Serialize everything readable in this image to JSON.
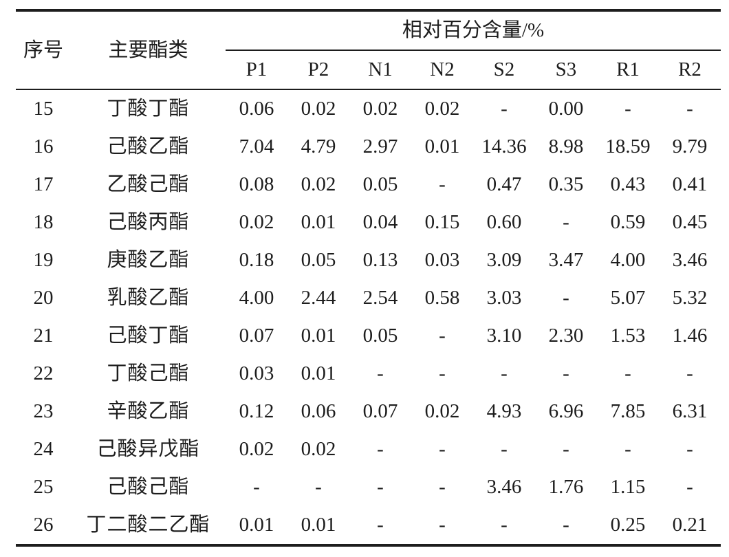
{
  "page": {
    "background": "#ffffff",
    "text_color": "#1d1d1d",
    "rule_color": "#1d1d1d"
  },
  "table": {
    "headers": {
      "serial": "序号",
      "ester": "主要酯类",
      "relative_content": "相对百分含量/%",
      "samples": [
        "P1",
        "P2",
        "N1",
        "N2",
        "S2",
        "S3",
        "R1",
        "R2"
      ]
    },
    "rows": [
      {
        "no": "15",
        "name": "丁酸丁酯",
        "values": [
          "0.06",
          "0.02",
          "0.02",
          "0.02",
          "-",
          "0.00",
          "-",
          "-"
        ]
      },
      {
        "no": "16",
        "name": "己酸乙酯",
        "values": [
          "7.04",
          "4.79",
          "2.97",
          "0.01",
          "14.36",
          "8.98",
          "18.59",
          "9.79"
        ]
      },
      {
        "no": "17",
        "name": "乙酸己酯",
        "values": [
          "0.08",
          "0.02",
          "0.05",
          "-",
          "0.47",
          "0.35",
          "0.43",
          "0.41"
        ]
      },
      {
        "no": "18",
        "name": "己酸丙酯",
        "values": [
          "0.02",
          "0.01",
          "0.04",
          "0.15",
          "0.60",
          "-",
          "0.59",
          "0.45"
        ]
      },
      {
        "no": "19",
        "name": "庚酸乙酯",
        "values": [
          "0.18",
          "0.05",
          "0.13",
          "0.03",
          "3.09",
          "3.47",
          "4.00",
          "3.46"
        ]
      },
      {
        "no": "20",
        "name": "乳酸乙酯",
        "values": [
          "4.00",
          "2.44",
          "2.54",
          "0.58",
          "3.03",
          "-",
          "5.07",
          "5.32"
        ]
      },
      {
        "no": "21",
        "name": "己酸丁酯",
        "values": [
          "0.07",
          "0.01",
          "0.05",
          "-",
          "3.10",
          "2.30",
          "1.53",
          "1.46"
        ]
      },
      {
        "no": "22",
        "name": "丁酸己酯",
        "values": [
          "0.03",
          "0.01",
          "-",
          "-",
          "-",
          "-",
          "-",
          "-"
        ]
      },
      {
        "no": "23",
        "name": "辛酸乙酯",
        "values": [
          "0.12",
          "0.06",
          "0.07",
          "0.02",
          "4.93",
          "6.96",
          "7.85",
          "6.31"
        ]
      },
      {
        "no": "24",
        "name": "己酸异戊酯",
        "values": [
          "0.02",
          "0.02",
          "-",
          "-",
          "-",
          "-",
          "-",
          "-"
        ]
      },
      {
        "no": "25",
        "name": "己酸己酯",
        "values": [
          "-",
          "-",
          "-",
          "-",
          "3.46",
          "1.76",
          "1.15",
          "-"
        ]
      },
      {
        "no": "26",
        "name": "丁二酸二乙酯",
        "values": [
          "0.01",
          "0.01",
          "-",
          "-",
          "-",
          "-",
          "0.25",
          "0.21"
        ]
      }
    ]
  }
}
